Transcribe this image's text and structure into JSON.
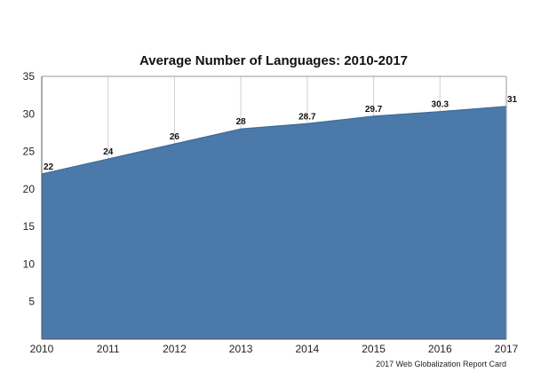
{
  "chart_data": {
    "type": "area",
    "title": "Average Number of Languages: 2010-2017",
    "xlabel": "",
    "ylabel": "",
    "categories": [
      "2010",
      "2011",
      "2012",
      "2013",
      "2014",
      "2015",
      "2016",
      "2017"
    ],
    "values": [
      22,
      24,
      26,
      28,
      28.7,
      29.7,
      30.3,
      31
    ],
    "data_labels": [
      "22",
      "24",
      "26",
      "28",
      "28.7",
      "29.7",
      "30.3",
      "31"
    ],
    "ylim": [
      0,
      35
    ],
    "yticks": [
      5,
      10,
      15,
      20,
      25,
      30,
      35
    ],
    "grid": "vertical",
    "legend": "none",
    "fill_color": "#4b79a9",
    "line_color": "#3f6b9a",
    "source_note": "2017 Web Globalization Report Card"
  }
}
